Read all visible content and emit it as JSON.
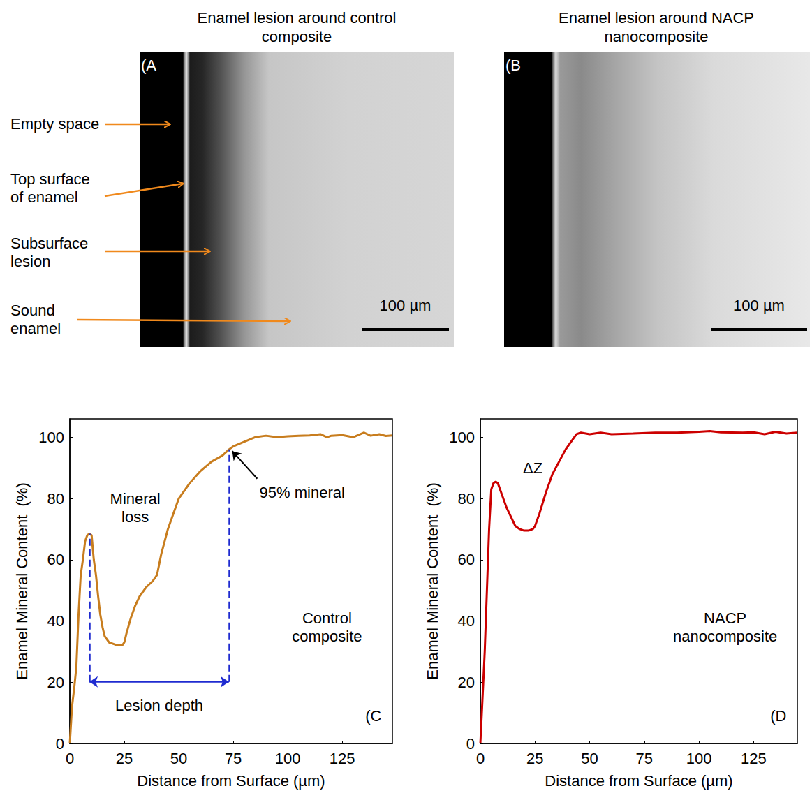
{
  "images": [
    {
      "title": "Enamel lesion around control composite",
      "letter": "(A",
      "labels": [
        "Empty space",
        "Top surface of enamel",
        "Subsurface lesion",
        "Sound enamel"
      ],
      "scale_bar": "100 µm"
    },
    {
      "title": "Enamel lesion around NACP nanocomposite",
      "letter": "(B",
      "scale_bar": "100 µm"
    }
  ],
  "chart_data": [
    {
      "type": "line",
      "x_label": "Distance from Surface (µm)",
      "y_label": "Enamel Mineral Content  (%)",
      "x": [
        0,
        1,
        2,
        3,
        4,
        5,
        6,
        7,
        8,
        9,
        10,
        11,
        12,
        13,
        14,
        15,
        16,
        18,
        20,
        22,
        24,
        25,
        26,
        28,
        30,
        32,
        35,
        38,
        40,
        42,
        45,
        48,
        50,
        55,
        60,
        65,
        70,
        73,
        75,
        80,
        85,
        90,
        95,
        100,
        105,
        110,
        115,
        118,
        120,
        125,
        130,
        135,
        138,
        142,
        145,
        148
      ],
      "values": [
        0,
        12,
        18,
        25,
        42,
        55,
        60,
        66,
        68,
        68.5,
        68,
        60,
        55,
        48,
        42,
        38,
        35,
        33,
        32.5,
        32,
        32,
        33,
        36,
        41,
        45,
        48,
        51,
        53,
        55,
        62,
        70,
        76,
        80,
        85,
        89,
        92,
        94,
        96,
        97,
        98.5,
        100,
        100.5,
        100,
        100.3,
        100.5,
        100.6,
        101,
        100,
        100.5,
        100.7,
        100,
        101.5,
        100.5,
        101,
        100.4,
        100.6
      ],
      "color": "#c87d1e",
      "xlim": [
        0,
        148
      ],
      "xticks": [
        0,
        25,
        50,
        75,
        100,
        125
      ],
      "ylim": [
        0,
        106
      ],
      "yticks": [
        0,
        20,
        40,
        60,
        80,
        100
      ],
      "grid": false,
      "lesion_depth": [
        9,
        73
      ],
      "annotations": [
        "Mineral loss",
        "95% mineral",
        "Lesion depth",
        "Control composite",
        "(C"
      ]
    },
    {
      "type": "line",
      "x_label": "Distance from Surface (µm)",
      "y_label": "Enamel Mineral Content  (%)",
      "x": [
        0,
        2,
        4,
        5,
        6,
        7,
        8,
        10,
        12,
        14,
        16,
        18,
        20,
        22,
        24,
        25,
        27,
        30,
        33,
        36,
        39,
        42,
        44,
        46,
        50,
        55,
        60,
        70,
        80,
        90,
        100,
        105,
        110,
        120,
        125,
        130,
        135,
        140,
        145
      ],
      "values": [
        0,
        30,
        70,
        83,
        85,
        85.5,
        85,
        81,
        77,
        74,
        71,
        70,
        69.5,
        69.5,
        70,
        71,
        75,
        82,
        88,
        92,
        96,
        99,
        101,
        101.5,
        101,
        101.5,
        101,
        101.2,
        101.5,
        101.5,
        101.8,
        102,
        101.6,
        101.5,
        101.6,
        101,
        101.8,
        101.2,
        101.5
      ],
      "color": "#cc0000",
      "xlim": [
        0,
        145
      ],
      "xticks": [
        0,
        25,
        50,
        75,
        100,
        125
      ],
      "ylim": [
        0,
        106
      ],
      "yticks": [
        0,
        20,
        40,
        60,
        80,
        100
      ],
      "grid": false,
      "annotations": [
        "ΔZ",
        "NACP nanocomposite",
        "(D"
      ]
    }
  ]
}
